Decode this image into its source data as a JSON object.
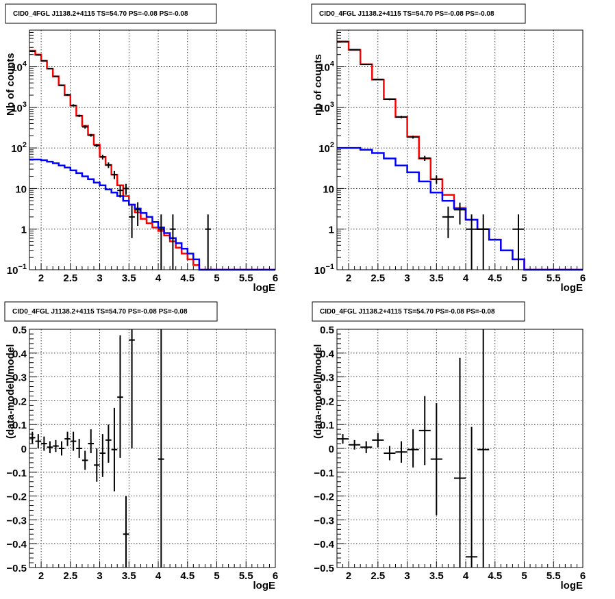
{
  "chart_data": [
    {
      "panel": "top-left",
      "type": "line",
      "title": "CID0_4FGL J1138.2+4115 TS=54.70 PS=-0.08 PS=-0.08",
      "xlabel": "logE",
      "ylabel": "Nb of counts",
      "xlim": [
        1.8,
        6.0
      ],
      "ylim": [
        0.1,
        80000
      ],
      "yscale": "log",
      "grid": true,
      "xticks": [
        "2",
        "2.5",
        "3",
        "3.5",
        "4",
        "4.5",
        "5",
        "5.5",
        "6"
      ],
      "yticks": [
        {
          "v": 0.1,
          "base": "10",
          "exp": "−1"
        },
        {
          "v": 1,
          "text": "1"
        },
        {
          "v": 10,
          "text": "10"
        },
        {
          "v": 100,
          "base": "10",
          "exp": "2"
        },
        {
          "v": 1000,
          "base": "10",
          "exp": "3"
        },
        {
          "v": 10000,
          "base": "10",
          "exp": "4"
        }
      ],
      "series": [
        {
          "color": "#ff0000",
          "style": "step",
          "edges": [
            1.8,
            1.9,
            2.0,
            2.1,
            2.2,
            2.3,
            2.4,
            2.5,
            2.6,
            2.7,
            2.8,
            2.9,
            3.0,
            3.1,
            3.2,
            3.3,
            3.4,
            3.5,
            3.6,
            3.7,
            3.8,
            3.9,
            4.0,
            4.1,
            4.2,
            4.3,
            4.4,
            4.5,
            4.6,
            4.7,
            4.8,
            4.9,
            5.0,
            5.1,
            5.2,
            5.3,
            5.4,
            5.5,
            5.6,
            5.7,
            5.8,
            5.9,
            6.0
          ],
          "values": [
            25000,
            20000,
            14000,
            9000,
            5800,
            3500,
            2000,
            1100,
            620,
            350,
            210,
            120,
            60,
            38,
            22,
            12,
            6.5,
            4.0,
            2.6,
            1.8,
            1.4,
            1.1,
            0.9,
            0.7,
            0.5,
            0.35,
            0.25,
            0.18,
            0.13,
            0.1,
            0.1,
            0.1,
            0.1,
            0.1,
            0.1,
            0.1,
            0.1,
            0.1,
            0.1,
            0.1,
            0.1,
            0.1
          ]
        },
        {
          "color": "#0000ff",
          "style": "step",
          "edges": [
            1.8,
            1.9,
            2.0,
            2.1,
            2.2,
            2.3,
            2.4,
            2.5,
            2.6,
            2.7,
            2.8,
            2.9,
            3.0,
            3.1,
            3.2,
            3.3,
            3.4,
            3.5,
            3.6,
            3.7,
            3.8,
            3.9,
            4.0,
            4.1,
            4.2,
            4.3,
            4.4,
            4.5,
            4.6,
            4.7,
            4.8,
            4.9,
            5.0,
            5.1,
            5.2,
            5.3,
            5.4,
            5.5,
            5.6,
            5.7,
            5.8,
            5.9,
            6.0
          ],
          "values": [
            52,
            52,
            50,
            46,
            42,
            37,
            33,
            28,
            24,
            20,
            17,
            14,
            12,
            9.5,
            8,
            6.5,
            5,
            4,
            3.2,
            2.5,
            2.0,
            1.5,
            1.1,
            0.8,
            0.6,
            0.45,
            0.33,
            0.25,
            0.18,
            0.1,
            0.1,
            0.1,
            0.1,
            0.1,
            0.1,
            0.1,
            0.1,
            0.1,
            0.1,
            0.1,
            0.1,
            0.1
          ]
        }
      ],
      "points": [
        {
          "x": 1.85,
          "y": 24000,
          "xe": 0.05,
          "ylo": 23000,
          "yhi": 25000
        },
        {
          "x": 1.95,
          "y": 19500,
          "xe": 0.05,
          "ylo": 18800,
          "yhi": 20200
        },
        {
          "x": 2.05,
          "y": 14000,
          "xe": 0.05,
          "ylo": 13500,
          "yhi": 14500
        },
        {
          "x": 2.15,
          "y": 9000,
          "xe": 0.05,
          "ylo": 8700,
          "yhi": 9300
        },
        {
          "x": 2.25,
          "y": 5800,
          "xe": 0.05,
          "ylo": 5600,
          "yhi": 6000
        },
        {
          "x": 2.35,
          "y": 3500,
          "xe": 0.05,
          "ylo": 3350,
          "yhi": 3650
        },
        {
          "x": 2.45,
          "y": 2050,
          "xe": 0.05,
          "ylo": 1950,
          "yhi": 2150
        },
        {
          "x": 2.55,
          "y": 1120,
          "xe": 0.05,
          "ylo": 1050,
          "yhi": 1190
        },
        {
          "x": 2.65,
          "y": 620,
          "xe": 0.05,
          "ylo": 580,
          "yhi": 660
        },
        {
          "x": 2.75,
          "y": 330,
          "xe": 0.05,
          "ylo": 300,
          "yhi": 360
        },
        {
          "x": 2.85,
          "y": 205,
          "xe": 0.05,
          "ylo": 190,
          "yhi": 220
        },
        {
          "x": 2.95,
          "y": 115,
          "xe": 0.05,
          "ylo": 105,
          "yhi": 125
        },
        {
          "x": 3.05,
          "y": 60,
          "xe": 0.05,
          "ylo": 52,
          "yhi": 68
        },
        {
          "x": 3.15,
          "y": 38,
          "xe": 0.05,
          "ylo": 32,
          "yhi": 44
        },
        {
          "x": 3.25,
          "y": 22,
          "xe": 0.05,
          "ylo": 17,
          "yhi": 27
        },
        {
          "x": 3.35,
          "y": 9,
          "xe": 0.05,
          "ylo": 6,
          "yhi": 12
        },
        {
          "x": 3.45,
          "y": 10,
          "xe": 0.05,
          "ylo": 7,
          "yhi": 13
        },
        {
          "x": 3.55,
          "y": 2,
          "xe": 0.05,
          "ylo": 0.6,
          "yhi": 3.8
        },
        {
          "x": 3.65,
          "y": 3,
          "xe": 0.05,
          "ylo": 1.2,
          "yhi": 4.6
        },
        {
          "x": 4.05,
          "y": 1,
          "xe": 0.05,
          "ylo": 0.1,
          "yhi": 2.3
        },
        {
          "x": 4.25,
          "y": 1,
          "xe": 0.05,
          "ylo": 0.1,
          "yhi": 2.3
        },
        {
          "x": 4.85,
          "y": 1,
          "xe": 0.05,
          "ylo": 0.1,
          "yhi": 2.3
        }
      ]
    },
    {
      "panel": "top-right",
      "type": "line",
      "title": "CID0_4FGL J1138.2+4115 TS=54.70 PS=-0.08 PS=-0.08",
      "xlabel": "logE",
      "ylabel": "nb of counts",
      "xlim": [
        1.8,
        6.0
      ],
      "ylim": [
        0.1,
        80000
      ],
      "yscale": "log",
      "grid": true,
      "xticks": [
        "2",
        "2.5",
        "3",
        "3.5",
        "4",
        "4.5",
        "5",
        "5.5",
        "6"
      ],
      "yticks": [
        {
          "v": 0.1,
          "base": "10",
          "exp": "−1"
        },
        {
          "v": 1,
          "text": "1"
        },
        {
          "v": 10,
          "text": "10"
        },
        {
          "v": 100,
          "base": "10",
          "exp": "2"
        },
        {
          "v": 1000,
          "base": "10",
          "exp": "3"
        },
        {
          "v": 10000,
          "base": "10",
          "exp": "4"
        }
      ],
      "series": [
        {
          "color": "#ff0000",
          "style": "step",
          "edges": [
            1.8,
            2.0,
            2.2,
            2.4,
            2.6,
            2.8,
            3.0,
            3.2,
            3.4,
            3.6,
            3.8,
            4.0,
            4.2,
            4.4,
            4.6,
            4.8,
            5.0,
            5.2,
            5.4,
            5.6,
            5.8,
            6.0
          ],
          "values": [
            42000,
            26000,
            11500,
            4800,
            1600,
            580,
            190,
            55,
            17,
            7,
            3.3,
            1.7,
            1.0,
            0.55,
            0.3,
            0.18,
            0.1,
            0.1,
            0.1,
            0.1,
            0.1
          ]
        },
        {
          "color": "#0000ff",
          "style": "step",
          "edges": [
            1.8,
            2.0,
            2.2,
            2.4,
            2.6,
            2.8,
            3.0,
            3.2,
            3.4,
            3.6,
            3.8,
            4.0,
            4.2,
            4.4,
            4.6,
            4.8,
            5.0,
            5.2,
            5.4,
            5.6,
            5.8,
            6.0
          ],
          "values": [
            100,
            100,
            90,
            75,
            55,
            37,
            25,
            15,
            8,
            5,
            3.2,
            1.7,
            1.0,
            0.55,
            0.3,
            0.18,
            0.1,
            0.1,
            0.1,
            0.1,
            0.1
          ]
        }
      ],
      "points": [
        {
          "x": 1.9,
          "y": 41000,
          "xe": 0.1,
          "ylo": 40000,
          "yhi": 42000
        },
        {
          "x": 2.1,
          "y": 26500,
          "xe": 0.1,
          "ylo": 25800,
          "yhi": 27200
        },
        {
          "x": 2.3,
          "y": 11500,
          "xe": 0.1,
          "ylo": 11100,
          "yhi": 11900
        },
        {
          "x": 2.5,
          "y": 4900,
          "xe": 0.1,
          "ylo": 4700,
          "yhi": 5100
        },
        {
          "x": 2.7,
          "y": 1580,
          "xe": 0.1,
          "ylo": 1500,
          "yhi": 1660
        },
        {
          "x": 2.9,
          "y": 580,
          "xe": 0.1,
          "ylo": 540,
          "yhi": 620
        },
        {
          "x": 3.1,
          "y": 185,
          "xe": 0.1,
          "ylo": 170,
          "yhi": 200
        },
        {
          "x": 3.3,
          "y": 56,
          "xe": 0.1,
          "ylo": 48,
          "yhi": 64
        },
        {
          "x": 3.5,
          "y": 17,
          "xe": 0.1,
          "ylo": 13,
          "yhi": 21
        },
        {
          "x": 3.7,
          "y": 2,
          "xe": 0.1,
          "ylo": 0.6,
          "yhi": 3.6
        },
        {
          "x": 3.9,
          "y": 3,
          "xe": 0.1,
          "ylo": 1.3,
          "yhi": 4.5
        },
        {
          "x": 4.1,
          "y": 1,
          "xe": 0.1,
          "ylo": 0.1,
          "yhi": 2.3
        },
        {
          "x": 4.3,
          "y": 1,
          "xe": 0.1,
          "ylo": 0.1,
          "yhi": 2.3
        },
        {
          "x": 4.9,
          "y": 1,
          "xe": 0.1,
          "ylo": 0.1,
          "yhi": 2.3
        }
      ]
    },
    {
      "panel": "bottom-left",
      "type": "scatter",
      "title": "CID0_4FGL J1138.2+4115 TS=54.70 PS=-0.08 PS=-0.08",
      "xlabel": "logE",
      "ylabel": "(data-model)/model",
      "xlim": [
        1.8,
        6.0
      ],
      "ylim": [
        -0.5,
        0.5
      ],
      "yscale": "linear",
      "grid": true,
      "xticks": [
        "2",
        "2.5",
        "3",
        "3.5",
        "4",
        "4.5",
        "5",
        "5.5",
        "6"
      ],
      "yticks": [
        {
          "v": -0.5,
          "text": "−0.5"
        },
        {
          "v": -0.4,
          "text": "−0.4"
        },
        {
          "v": -0.3,
          "text": "−0.3"
        },
        {
          "v": -0.2,
          "text": "−0.2"
        },
        {
          "v": -0.1,
          "text": "−0.1"
        },
        {
          "v": 0,
          "text": "0"
        },
        {
          "v": 0.1,
          "text": "0.1"
        },
        {
          "v": 0.2,
          "text": "0.2"
        },
        {
          "v": 0.3,
          "text": "0.3"
        },
        {
          "v": 0.4,
          "text": "0.4"
        },
        {
          "v": 0.5,
          "text": "0.5"
        }
      ],
      "series": [],
      "points": [
        {
          "x": 1.85,
          "y": 0.045,
          "xe": 0.05,
          "ylo": 0.02,
          "yhi": 0.07
        },
        {
          "x": 1.95,
          "y": 0.03,
          "xe": 0.05,
          "ylo": 0.0,
          "yhi": 0.06
        },
        {
          "x": 2.05,
          "y": 0.02,
          "xe": 0.05,
          "ylo": -0.01,
          "yhi": 0.05
        },
        {
          "x": 2.15,
          "y": 0.005,
          "xe": 0.05,
          "ylo": -0.02,
          "yhi": 0.03
        },
        {
          "x": 2.25,
          "y": 0.01,
          "xe": 0.05,
          "ylo": -0.015,
          "yhi": 0.035
        },
        {
          "x": 2.35,
          "y": 0.0,
          "xe": 0.05,
          "ylo": -0.03,
          "yhi": 0.03
        },
        {
          "x": 2.45,
          "y": 0.04,
          "xe": 0.05,
          "ylo": 0.01,
          "yhi": 0.07
        },
        {
          "x": 2.55,
          "y": 0.03,
          "xe": 0.05,
          "ylo": -0.01,
          "yhi": 0.07
        },
        {
          "x": 2.65,
          "y": 0.0,
          "xe": 0.05,
          "ylo": -0.04,
          "yhi": 0.04
        },
        {
          "x": 2.75,
          "y": -0.05,
          "xe": 0.05,
          "ylo": -0.09,
          "yhi": -0.01
        },
        {
          "x": 2.85,
          "y": 0.02,
          "xe": 0.05,
          "ylo": -0.02,
          "yhi": 0.08
        },
        {
          "x": 2.95,
          "y": -0.07,
          "xe": 0.05,
          "ylo": -0.14,
          "yhi": 0.0
        },
        {
          "x": 3.05,
          "y": -0.02,
          "xe": 0.05,
          "ylo": -0.12,
          "yhi": 0.06
        },
        {
          "x": 3.15,
          "y": 0.035,
          "xe": 0.05,
          "ylo": -0.06,
          "yhi": 0.1
        },
        {
          "x": 3.25,
          "y": -0.005,
          "xe": 0.05,
          "ylo": -0.18,
          "yhi": 0.17
        },
        {
          "x": 3.35,
          "y": 0.215,
          "xe": 0.05,
          "ylo": -0.04,
          "yhi": 0.475
        },
        {
          "x": 3.45,
          "y": -0.36,
          "xe": 0.05,
          "ylo": -0.5,
          "yhi": -0.2
        },
        {
          "x": 3.55,
          "y": 0.455,
          "xe": 0.05,
          "ylo": 0.0,
          "yhi": 0.5
        },
        {
          "x": 4.05,
          "y": -0.045,
          "xe": 0.05,
          "ylo": -0.5,
          "yhi": 0.5
        }
      ]
    },
    {
      "panel": "bottom-right",
      "type": "scatter",
      "title": "CID0_4FGL J1138.2+4115 TS=54.70 PS=-0.08 PS=-0.08",
      "xlabel": "logE",
      "ylabel": "(data-model)/model",
      "xlim": [
        1.8,
        6.0
      ],
      "ylim": [
        -0.5,
        0.5
      ],
      "yscale": "linear",
      "grid": true,
      "xticks": [
        "2",
        "2.5",
        "3",
        "3.5",
        "4",
        "4.5",
        "5",
        "5.5",
        "6"
      ],
      "yticks": [
        {
          "v": -0.5,
          "text": "−0.5"
        },
        {
          "v": -0.4,
          "text": "−0.4"
        },
        {
          "v": -0.3,
          "text": "−0.3"
        },
        {
          "v": -0.2,
          "text": "−0.2"
        },
        {
          "v": -0.1,
          "text": "−0.1"
        },
        {
          "v": 0,
          "text": "0"
        },
        {
          "v": 0.1,
          "text": "0.1"
        },
        {
          "v": 0.2,
          "text": "0.2"
        },
        {
          "v": 0.3,
          "text": "0.3"
        },
        {
          "v": 0.4,
          "text": "0.4"
        },
        {
          "v": 0.5,
          "text": "0.5"
        }
      ],
      "series": [],
      "points": [
        {
          "x": 1.9,
          "y": 0.04,
          "xe": 0.1,
          "ylo": 0.02,
          "yhi": 0.06
        },
        {
          "x": 2.1,
          "y": 0.015,
          "xe": 0.1,
          "ylo": -0.005,
          "yhi": 0.035
        },
        {
          "x": 2.3,
          "y": 0.005,
          "xe": 0.1,
          "ylo": -0.02,
          "yhi": 0.03
        },
        {
          "x": 2.5,
          "y": 0.035,
          "xe": 0.1,
          "ylo": 0.005,
          "yhi": 0.065
        },
        {
          "x": 2.7,
          "y": -0.02,
          "xe": 0.1,
          "ylo": -0.05,
          "yhi": 0.01
        },
        {
          "x": 2.9,
          "y": -0.015,
          "xe": 0.1,
          "ylo": -0.06,
          "yhi": 0.03
        },
        {
          "x": 3.1,
          "y": -0.005,
          "xe": 0.1,
          "ylo": -0.08,
          "yhi": 0.08
        },
        {
          "x": 3.3,
          "y": 0.075,
          "xe": 0.1,
          "ylo": -0.07,
          "yhi": 0.22
        },
        {
          "x": 3.5,
          "y": -0.045,
          "xe": 0.1,
          "ylo": -0.28,
          "yhi": 0.19
        },
        {
          "x": 3.9,
          "y": -0.125,
          "xe": 0.1,
          "ylo": -0.5,
          "yhi": 0.38
        },
        {
          "x": 4.1,
          "y": -0.455,
          "xe": 0.1,
          "ylo": -0.5,
          "yhi": 0.09
        },
        {
          "x": 4.3,
          "y": -0.005,
          "xe": 0.1,
          "ylo": -0.5,
          "yhi": 0.5
        }
      ]
    }
  ]
}
